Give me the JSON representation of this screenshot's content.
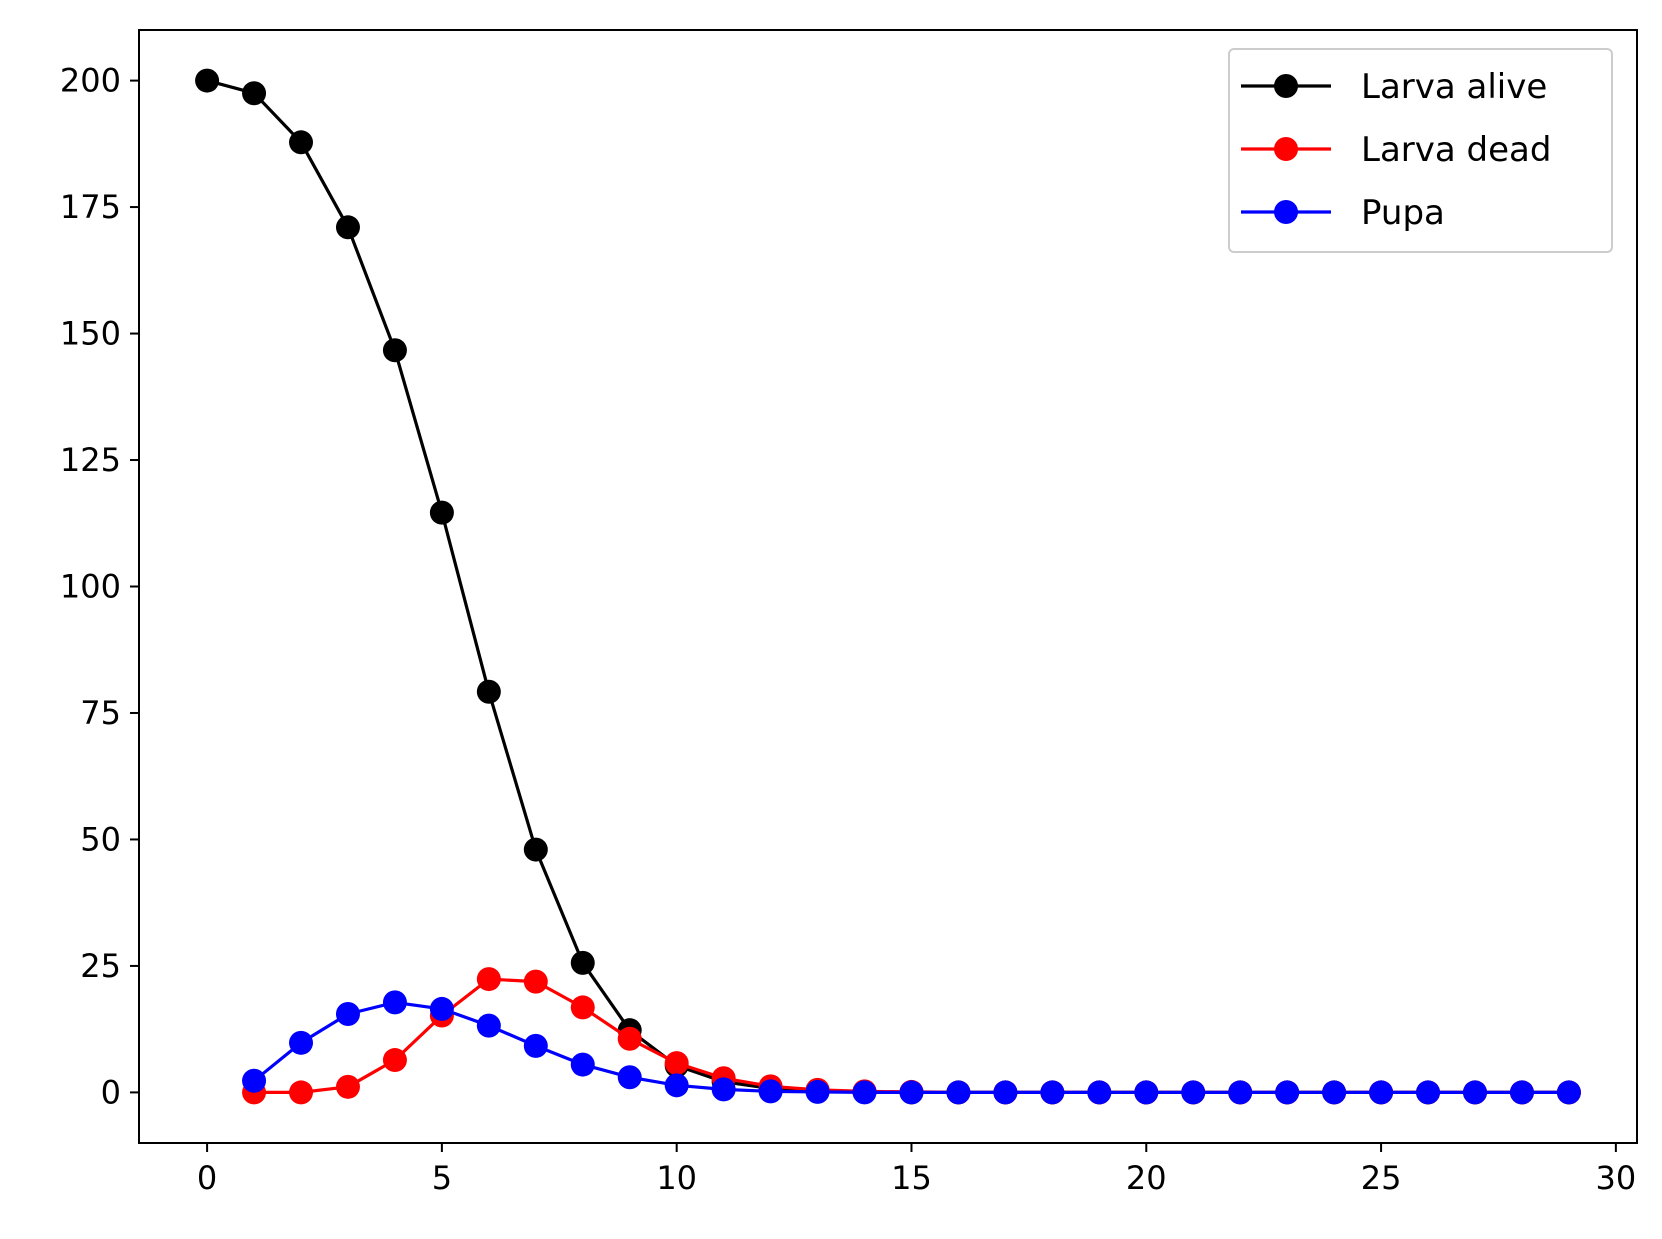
{
  "chart_data": {
    "type": "line",
    "title": "",
    "xlabel": "",
    "ylabel": "",
    "xlim": [
      -1.45,
      30.45
    ],
    "ylim": [
      -10,
      210
    ],
    "xticks": [
      0,
      5,
      10,
      15,
      20,
      25,
      30
    ],
    "yticks": [
      0,
      25,
      50,
      75,
      100,
      125,
      150,
      175,
      200
    ],
    "grid": false,
    "legend_position": "top-right",
    "series": [
      {
        "name": "Larva alive",
        "color": "#000000",
        "marker": "circle",
        "x": [
          0,
          1,
          2,
          3,
          4,
          5,
          6,
          7,
          8,
          9,
          10,
          11,
          12,
          13,
          14,
          15,
          16,
          17,
          18,
          19,
          20,
          21,
          22,
          23,
          24,
          25,
          26,
          27,
          28,
          29
        ],
        "values": [
          200,
          197.5,
          187.8,
          171,
          146.7,
          114.6,
          79.2,
          48,
          25.6,
          12.3,
          5.3,
          2.1,
          0.8,
          0.3,
          0.1,
          0,
          0,
          0,
          0,
          0,
          0,
          0,
          0,
          0,
          0,
          0,
          0,
          0,
          0,
          0
        ]
      },
      {
        "name": "Larva dead",
        "color": "#ff0000",
        "marker": "circle",
        "x": [
          1,
          2,
          3,
          4,
          5,
          6,
          7,
          8,
          9,
          10,
          11,
          12,
          13,
          14,
          15,
          16,
          17,
          18,
          19,
          20,
          21,
          22,
          23,
          24,
          25,
          26,
          27,
          28,
          29
        ],
        "values": [
          0,
          0,
          1.1,
          6.4,
          15.2,
          22.4,
          21.9,
          16.8,
          10.6,
          5.8,
          2.8,
          1.2,
          0.5,
          0.2,
          0.1,
          0,
          0,
          0,
          0,
          0,
          0,
          0,
          0,
          0,
          0,
          0,
          0,
          0,
          0
        ]
      },
      {
        "name": "Pupa",
        "color": "#0000ff",
        "marker": "circle",
        "x": [
          1,
          2,
          3,
          4,
          5,
          6,
          7,
          8,
          9,
          10,
          11,
          12,
          13,
          14,
          15,
          16,
          17,
          18,
          19,
          20,
          21,
          22,
          23,
          24,
          25,
          26,
          27,
          28,
          29
        ],
        "values": [
          2.3,
          9.8,
          15.5,
          17.8,
          16.5,
          13.2,
          9.2,
          5.5,
          3,
          1.4,
          0.6,
          0.2,
          0.1,
          0,
          0,
          0,
          0,
          0,
          0,
          0,
          0,
          0,
          0,
          0,
          0,
          0,
          0,
          0,
          0
        ]
      }
    ]
  }
}
